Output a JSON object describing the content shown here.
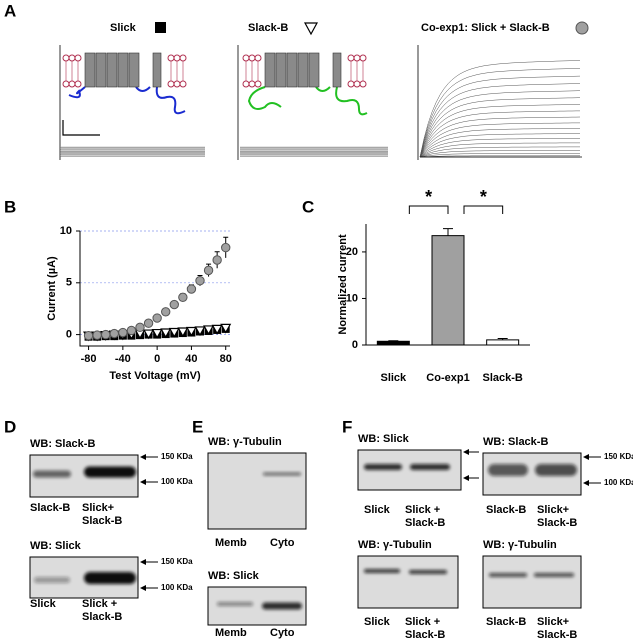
{
  "panel_labels": [
    "A",
    "B",
    "C",
    "D",
    "E",
    "F"
  ],
  "panel_a": {
    "titles": [
      "Slick",
      "Slack-B",
      "Co-exp1: Slick + Slack-B"
    ]
  },
  "chart_data": [
    {
      "type": "line",
      "x_label": "Test Voltage (mV)",
      "y_label": "Current (µA)",
      "x": [
        -80,
        -70,
        -60,
        -50,
        -40,
        -30,
        -20,
        -10,
        0,
        10,
        20,
        30,
        40,
        50,
        60,
        70,
        80
      ],
      "series": [
        {
          "marker": "square",
          "color": "#000000",
          "values": [
            -0.2,
            -0.2,
            -0.15,
            -0.15,
            -0.1,
            -0.1,
            -0.05,
            0,
            0,
            0.05,
            0.1,
            0.15,
            0.2,
            0.3,
            0.35,
            0.45,
            0.55
          ]
        },
        {
          "marker": "triangle",
          "color": "#ffffff",
          "values": [
            -0.1,
            -0.1,
            -0.05,
            0,
            0,
            0.05,
            0.1,
            0.1,
            0.15,
            0.2,
            0.25,
            0.3,
            0.35,
            0.4,
            0.5,
            0.55,
            0.65
          ]
        },
        {
          "marker": "circle",
          "color": "#a0a0a0",
          "values": [
            -0.1,
            -0.05,
            0,
            0.1,
            0.2,
            0.4,
            0.7,
            1.1,
            1.6,
            2.2,
            2.9,
            3.6,
            4.4,
            5.2,
            6.2,
            7.2,
            8.4
          ],
          "errors": [
            0.1,
            0.1,
            0.1,
            0.1,
            0.1,
            0.1,
            0.15,
            0.15,
            0.2,
            0.25,
            0.3,
            0.35,
            0.4,
            0.5,
            0.6,
            0.8,
            1.0
          ]
        }
      ],
      "xlim": [
        -90,
        85
      ],
      "ylim": [
        -1.1,
        10
      ],
      "xticks": [
        -80,
        -40,
        0,
        40,
        80
      ],
      "yticks": [
        0,
        5,
        10
      ],
      "grid": true
    },
    {
      "type": "bar",
      "y_label": "Normalized current",
      "categories": [
        "Slick",
        "Co-exp1",
        "Slack-B"
      ],
      "values": [
        0.8,
        23.5,
        1.1
      ],
      "errors": [
        0.1,
        1.5,
        0.3
      ],
      "colors": [
        "#000000",
        "#a0a0a0",
        "#ffffff"
      ],
      "ylim": [
        0,
        26
      ],
      "yticks": [
        0,
        10,
        20
      ],
      "annotations": [
        "*",
        "*"
      ]
    }
  ],
  "panel_d": {
    "blots": [
      {
        "title": "WB: Slack-B",
        "markers": [
          "150 KDa",
          "100 KDa"
        ],
        "lanes": [
          [
            "Slack-B"
          ],
          [
            "Slick+",
            "Slack-B"
          ]
        ]
      },
      {
        "title": "WB: Slick",
        "markers": [
          "150 KDa",
          "100 KDa"
        ],
        "lanes": [
          [
            "Slick"
          ],
          [
            "Slick +",
            "Slack-B"
          ]
        ]
      }
    ]
  },
  "panel_e": {
    "blots": [
      {
        "title": "WB: γ-Tubulin",
        "lanes": [
          [
            "Memb"
          ],
          [
            "Cyto"
          ]
        ]
      },
      {
        "title": "WB: Slick",
        "lanes": [
          [
            "Memb"
          ],
          [
            "Cyto"
          ]
        ]
      }
    ]
  },
  "panel_f": {
    "blots": [
      {
        "title": "WB: Slick",
        "lanes": [
          [
            "Slick"
          ],
          [
            "Slick +",
            "Slack-B"
          ]
        ]
      },
      {
        "title": "WB: Slack-B",
        "markers": [
          "150 KDa",
          "100 KDa"
        ],
        "lanes": [
          [
            "Slack-B"
          ],
          [
            "Slick+",
            "Slack-B"
          ]
        ]
      },
      {
        "title": "WB: γ-Tubulin",
        "lanes": [
          [
            "Slick"
          ],
          [
            "Slick +",
            "Slack-B"
          ]
        ]
      },
      {
        "title": "WB: γ-Tubulin",
        "lanes": [
          [
            "Slack-B"
          ],
          [
            "Slick+",
            "Slack-B"
          ]
        ]
      }
    ]
  }
}
